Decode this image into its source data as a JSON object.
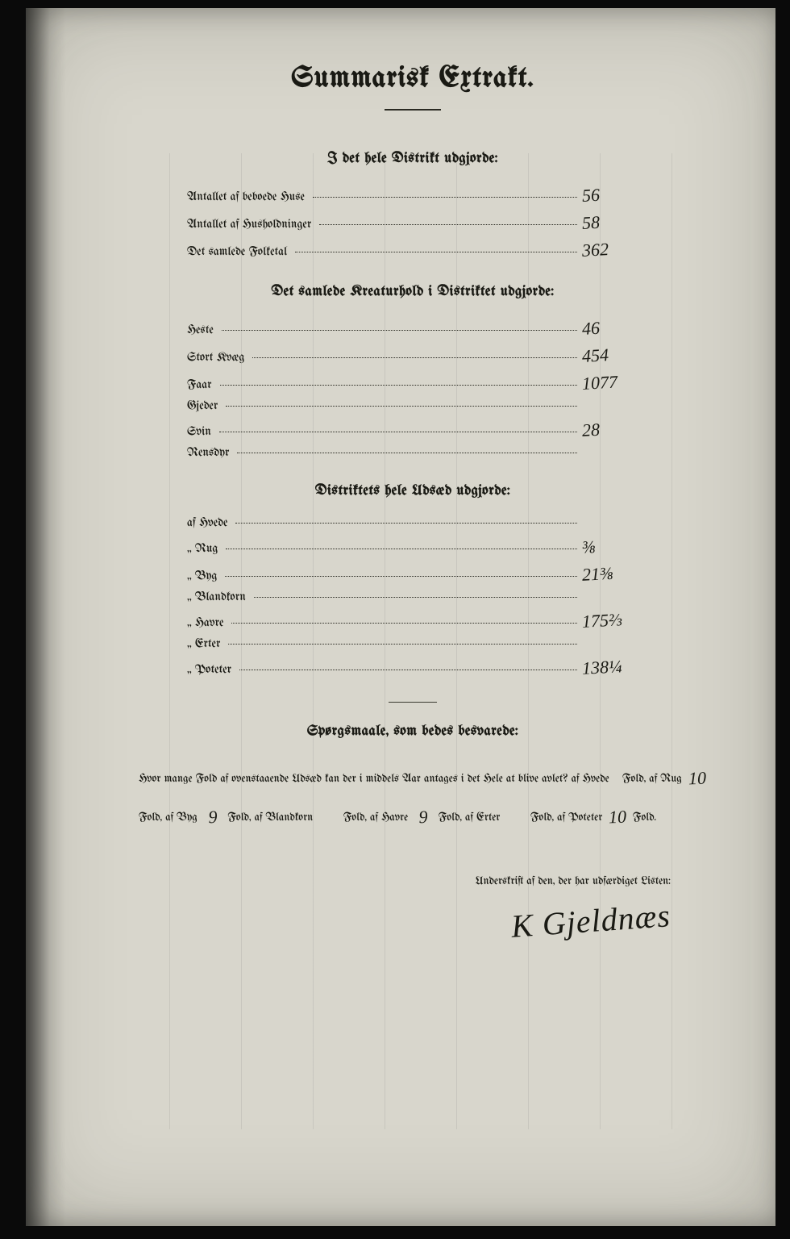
{
  "title": "Summarisk Extrakt.",
  "sections": {
    "district": {
      "heading": "I det hele Distrikt udgjorde:",
      "rows": [
        {
          "label": "Antallet af beboede Huse",
          "value": "56"
        },
        {
          "label": "Antallet af Husholdninger",
          "value": "58"
        },
        {
          "label": "Det samlede Folketal",
          "value": "362"
        }
      ]
    },
    "livestock": {
      "heading": "Det samlede Kreaturhold i Distriktet udgjorde:",
      "rows": [
        {
          "label": "Heste",
          "value": "46"
        },
        {
          "label": "Stort Kvæg",
          "value": "454"
        },
        {
          "label": "Faar",
          "value": "1077"
        },
        {
          "label": "Gjeder",
          "value": ""
        },
        {
          "label": "Svin",
          "value": "28"
        },
        {
          "label": "Rensdyr",
          "value": ""
        }
      ]
    },
    "seed": {
      "heading": "Distriktets hele Udsæd udgjorde:",
      "rows": [
        {
          "label": "af Hvede",
          "value": ""
        },
        {
          "label": "„ Rug",
          "value": "⅜"
        },
        {
          "label": "„ Byg",
          "value": "21⅜"
        },
        {
          "label": "„ Blandkorn",
          "value": ""
        },
        {
          "label": "„ Havre",
          "value": "175⅔"
        },
        {
          "label": "„ Erter",
          "value": ""
        },
        {
          "label": "„ Poteter",
          "value": "138¼"
        }
      ]
    }
  },
  "questions": {
    "heading": "Spørgsmaale, som bedes besvarede:",
    "intro": "Hvor mange Fold af ovenstaaende Udsæd kan der i middels Aar antages i det Hele at blive avlet? af Hvede",
    "segments": [
      {
        "pre": "Fold, af Rug",
        "val": "10"
      },
      {
        "pre": "Fold, af Byg",
        "val": "9"
      },
      {
        "pre": "Fold, af Blandkorn",
        "val": ""
      },
      {
        "pre": "Fold, af Havre",
        "val": "9"
      },
      {
        "pre": "Fold, af Erter",
        "val": ""
      },
      {
        "pre": "Fold, af Poteter",
        "val": "10"
      }
    ],
    "tail": "Fold."
  },
  "signature": {
    "caption": "Underskrift af den, der har udfærdiget Listen:",
    "name": "K Gjeldnæs"
  },
  "colors": {
    "page": "#d8d6cc",
    "ink": "#1a1a14",
    "frame": "#0a0a0a"
  }
}
